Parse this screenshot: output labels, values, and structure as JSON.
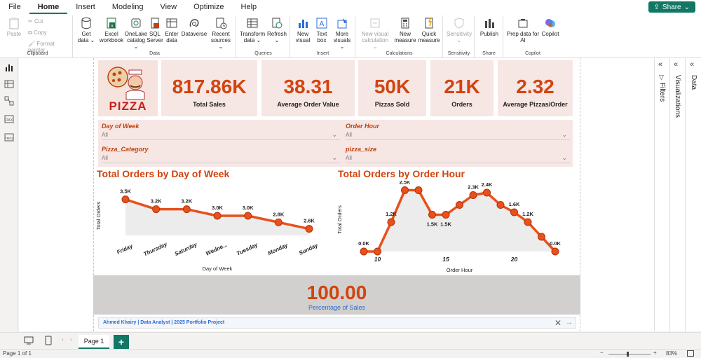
{
  "menu": {
    "items": [
      "File",
      "Home",
      "Insert",
      "Modeling",
      "View",
      "Optimize",
      "Help"
    ],
    "active": "Home",
    "share_label": "Share"
  },
  "ribbon": {
    "clipboard": {
      "label": "Clipboard",
      "paste": "Paste",
      "cut": "Cut",
      "copy": "Copy",
      "format_painter": "Format painter"
    },
    "data": {
      "label": "Data",
      "get_data": [
        "Get",
        "data ⌄"
      ],
      "excel": [
        "Excel",
        "workbook"
      ],
      "onelake": [
        "OneLake",
        "catalog ⌄"
      ],
      "sql": [
        "SQL",
        "Server"
      ],
      "enter": [
        "Enter",
        "data"
      ],
      "dataverse": [
        "Dataverse",
        ""
      ],
      "recent": [
        "Recent",
        "sources ⌄"
      ]
    },
    "queries": {
      "label": "Queries",
      "transform": [
        "Transform",
        "data ⌄"
      ],
      "refresh": [
        "Refresh",
        "⌄"
      ]
    },
    "insert": {
      "label": "Insert",
      "new_visual": [
        "New",
        "visual"
      ],
      "text_box": [
        "Text",
        "box"
      ],
      "more_visuals": [
        "More",
        "visuals ⌄"
      ]
    },
    "calculations": {
      "label": "Calculations",
      "new_visual_calc": [
        "New visual",
        "calculation ⌄"
      ],
      "new_measure": [
        "New",
        "measure"
      ],
      "quick_measure": [
        "Quick",
        "measure"
      ]
    },
    "sensitivity": {
      "label": "Sensitivity",
      "btn": [
        "Sensitivity",
        "⌄"
      ]
    },
    "share": {
      "label": "Share",
      "publish": [
        "Publish",
        ""
      ]
    },
    "copilot": {
      "label": "Copilot",
      "prep": [
        "Prep data for",
        "AI"
      ],
      "copilot": [
        "Copilot",
        ""
      ]
    }
  },
  "logo": {
    "text": "PIZZA"
  },
  "kpis": [
    {
      "value": "817.86K",
      "label": "Total Sales"
    },
    {
      "value": "38.31",
      "label": "Average Order Value"
    },
    {
      "value": "50K",
      "label": "Pizzas Sold"
    },
    {
      "value": "21K",
      "label": "Orders"
    },
    {
      "value": "2.32",
      "label": "Average Pizzas/Order"
    }
  ],
  "slicers": [
    {
      "title": "Day of Week",
      "value": "All"
    },
    {
      "title": "Order Hour",
      "value": "All"
    },
    {
      "title": "Pizza_Category",
      "value": "All"
    },
    {
      "title": "pizza_size",
      "value": "All"
    }
  ],
  "chart_data": [
    {
      "type": "line",
      "title": "Total Orders by Day of Week",
      "xlabel": "Day of Week",
      "ylabel": "Total Orders",
      "categories": [
        "Friday",
        "Thursday",
        "Saturday",
        "Wedne...",
        "Tuesday",
        "Monday",
        "Sunday"
      ],
      "values": [
        3500,
        3200,
        3200,
        3000,
        3000,
        2800,
        2600
      ],
      "data_labels": [
        "3.5K",
        "3.2K",
        "3.2K",
        "3.0K",
        "3.0K",
        "2.8K",
        "2.6K"
      ],
      "ylim": [
        2400,
        3600
      ],
      "color": "#e8501c"
    },
    {
      "type": "line",
      "title": "Total Orders by Order Hour",
      "xlabel": "Order Hour",
      "ylabel": "Total Orders",
      "x": [
        9,
        10,
        11,
        12,
        13,
        14,
        15,
        16,
        17,
        18,
        19,
        20,
        21,
        22,
        23
      ],
      "values": [
        0,
        0,
        1200,
        2500,
        2500,
        1500,
        1500,
        1900,
        2300,
        2400,
        1900,
        1600,
        1200,
        600,
        0
      ],
      "data_labels": [
        "0.0K",
        "",
        "1.2K",
        "2.5K",
        "",
        "1.5K",
        "1.5K",
        "",
        "2.3K",
        "2.4K",
        "",
        "1.6K",
        "1.2K",
        "",
        "0.0K"
      ],
      "x_ticks": [
        10,
        15,
        20
      ],
      "ylim": [
        0,
        2600
      ],
      "color": "#e8501c"
    }
  ],
  "percentage": {
    "value": "100.00",
    "label": "Percentage of Sales"
  },
  "footer": {
    "credit": "Ahmed Khairy | Data Analyst | 2025 Portfolio Project"
  },
  "panes": {
    "filters": "Filters",
    "visualizations": "Visualizations",
    "data": "Data"
  },
  "tabs": {
    "page1": "Page 1",
    "add": "+"
  },
  "status": {
    "page": "Page 1 of 1",
    "zoom": "83%"
  },
  "colors": {
    "accent": "#d2440f",
    "line": "#e8501c",
    "brand": "#117865"
  }
}
